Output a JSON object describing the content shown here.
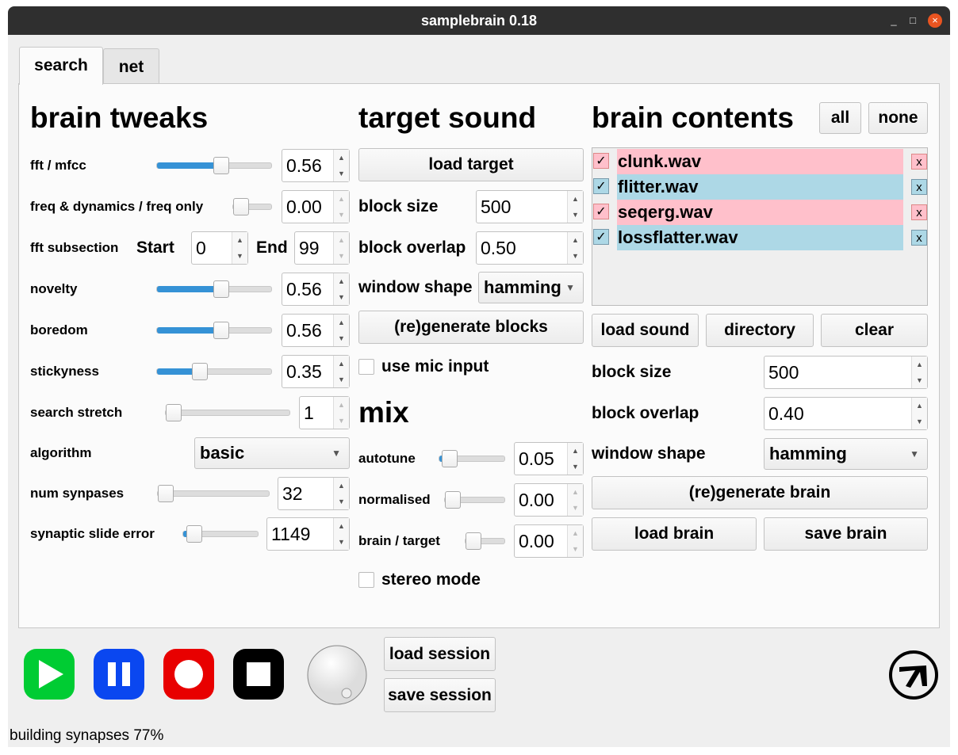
{
  "window": {
    "title": "samplebrain 0.18",
    "controls": [
      "_",
      "□",
      "×"
    ]
  },
  "tabs": [
    {
      "label": "search",
      "active": true
    },
    {
      "label": "net",
      "active": false
    }
  ],
  "brain_tweaks": {
    "heading": "brain tweaks",
    "fft_mfcc": {
      "label": "fft / mfcc",
      "value": "0.56",
      "slider": 0.56
    },
    "freq_dyn": {
      "label": "freq & dynamics / freq only",
      "value": "0.00",
      "slider": 0
    },
    "fft_sub": {
      "label": "fft subsection",
      "start_label": "Start",
      "start": "0",
      "end_label": "End",
      "end": "99"
    },
    "novelty": {
      "label": "novelty",
      "value": "0.56",
      "slider": 0.56
    },
    "boredom": {
      "label": "boredom",
      "value": "0.56",
      "slider": 0.56
    },
    "stickyness": {
      "label": "stickyness",
      "value": "0.35",
      "slider": 0.35
    },
    "search_stretch": {
      "label": "search stretch",
      "value": "1",
      "slider": 0
    },
    "algorithm": {
      "label": "algorithm",
      "value": "basic"
    },
    "num_synapses": {
      "label": "num synpases",
      "value": "32",
      "slider": 0
    },
    "slide_error": {
      "label": "synaptic slide error",
      "value": "1149",
      "slider": 0.05
    }
  },
  "target": {
    "heading": "target sound",
    "load": "load target",
    "block_size": {
      "label": "block size",
      "value": "500"
    },
    "block_overlap": {
      "label": "block overlap",
      "value": "0.50"
    },
    "window_shape": {
      "label": "window shape",
      "value": "hamming"
    },
    "regen": "(re)generate blocks",
    "mic": {
      "label": "use mic input",
      "checked": false
    }
  },
  "mix": {
    "heading": "mix",
    "autotune": {
      "label": "autotune",
      "value": "0.05",
      "slider": 0.05
    },
    "normalised": {
      "label": "normalised",
      "value": "0.00",
      "slider": 0
    },
    "brain_target": {
      "label": "brain / target",
      "value": "0.00",
      "slider": 0
    },
    "stereo": {
      "label": "stereo mode",
      "checked": false
    }
  },
  "brain": {
    "heading": "brain contents",
    "all": "all",
    "none": "none",
    "items": [
      {
        "name": "clunk.wav",
        "color": "#ffc0cb",
        "checked": true
      },
      {
        "name": "flitter.wav",
        "color": "#add8e6",
        "checked": true
      },
      {
        "name": "seqerg.wav",
        "color": "#ffc0cb",
        "checked": true
      },
      {
        "name": "lossflatter.wav",
        "color": "#add8e6",
        "checked": true
      }
    ],
    "check": "✓",
    "remove": "x",
    "load_sound": "load sound",
    "directory": "directory",
    "clear": "clear",
    "block_size": {
      "label": "block size",
      "value": "500"
    },
    "block_overlap": {
      "label": "block overlap",
      "value": "0.40"
    },
    "window_shape": {
      "label": "window shape",
      "value": "hamming"
    },
    "regen": "(re)generate brain",
    "load": "load brain",
    "save": "save brain"
  },
  "transport": {
    "play_color": "#00cc33",
    "pause_color": "#0a47f0",
    "record_color": "#e80000",
    "stop_color": "#000000",
    "load_session": "load session",
    "save_session": "save session"
  },
  "status": "building synapses 77%"
}
